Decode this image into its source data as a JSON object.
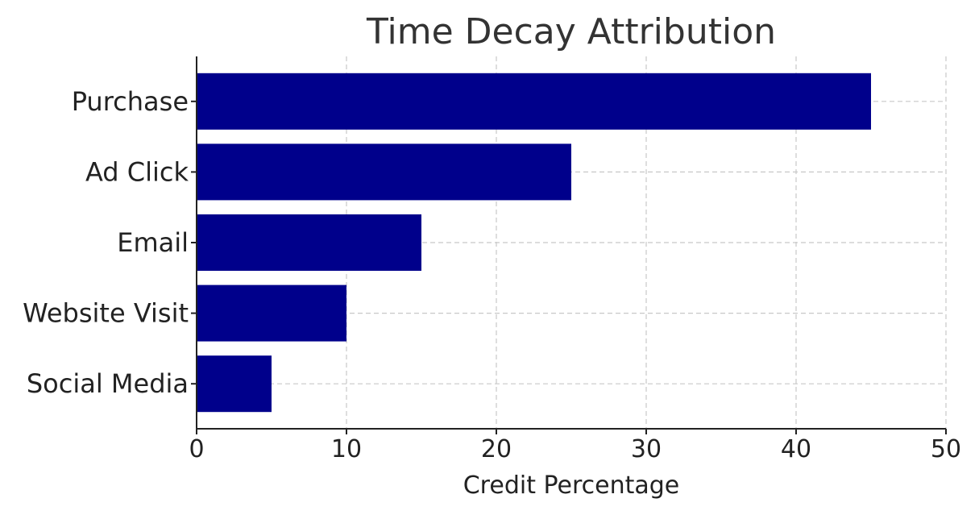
{
  "chart_data": {
    "type": "bar",
    "orientation": "horizontal",
    "title": "Time Decay Attribution",
    "xlabel": "Credit Percentage",
    "ylabel": "",
    "categories": [
      "Purchase",
      "Ad Click",
      "Email",
      "Website Visit",
      "Social Media"
    ],
    "values": [
      45,
      25,
      15,
      10,
      5
    ],
    "xlim": [
      0,
      50
    ],
    "xticks": [
      "0",
      "10",
      "20",
      "30",
      "40",
      "50"
    ],
    "grid": true,
    "bar_color": "#00008b"
  }
}
